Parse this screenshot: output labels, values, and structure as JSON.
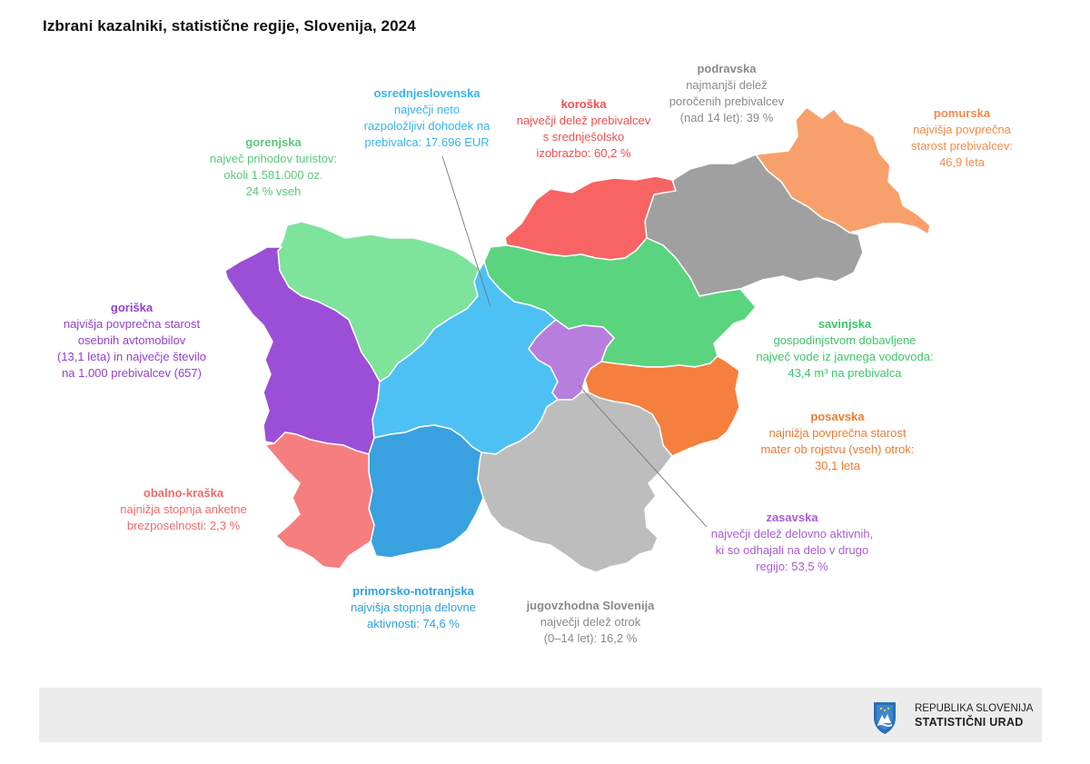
{
  "title": "Izbrani kazalniki, statistične regije, Slovenija, 2024",
  "regions": {
    "gorenjska": {
      "name": "gorenjska",
      "desc": "največ prihodov turistov:\nokoli 1.581.000 oz.\n24 % vseh",
      "color": "#7ee49c"
    },
    "osrednjeslovenska": {
      "name": "osrednjeslovenska",
      "desc": "največji neto\nrazpoložljivi dohodek na\nprebivalca: 17.696 EUR",
      "color": "#4dc1f4"
    },
    "koroska": {
      "name": "koroška",
      "desc": "največji delež prebivalcev\ns srednješolsko\nizobrazbo: 60,2 %",
      "color": "#f86464"
    },
    "podravska": {
      "name": "podravska",
      "desc": "najmanjši delež\nporočenih prebivalcev\n(nad 14 let): 39 %",
      "color": "#a0a0a0"
    },
    "pomurska": {
      "name": "pomurska",
      "desc": "najvišja povprečna\nstarost prebivalcev:\n46,9 leta",
      "color": "#f8a06c"
    },
    "goriska": {
      "name": "goriška",
      "desc": "najvišja povprečna starost\nosebnih avtomobilov\n(13,1 leta) in največje število\nna 1.000 prebivalcev (657)",
      "color": "#9b4fd6"
    },
    "savinjska": {
      "name": "savinjska",
      "desc": "gospodinjstvom dobavljene\nnajveč vode iz javnega vodovoda:\n43,4 m³ na prebivalca",
      "color": "#5ad47e"
    },
    "posavska": {
      "name": "posavska",
      "desc": "najnižja povprečna starost\nmater ob rojstvu (vseh) otrok:\n30,1 leta",
      "color": "#f57f3c"
    },
    "obalno_kraska": {
      "name": "obalno-kraška",
      "desc": "najnižja stopnja anketne\nbrezposelnosti: 2,3 %",
      "color": "#f77e7e"
    },
    "zasavska": {
      "name": "zasavska",
      "desc": "največji delež delovno aktivnih,\nki so odhajali na delo v drugo\nregijo: 53,5 %",
      "color": "#b87ede"
    },
    "primorsko_notranjska": {
      "name": "primorsko-notranjska",
      "desc": "najvišja stopnja delovne\naktivnosti: 74,6 %",
      "color": "#3aa1e0"
    },
    "jugovzhodna": {
      "name": "jugovzhodna Slovenija",
      "desc": "največji delež otrok\n(0–14 let): 16,2 %",
      "color": "#bdbdbd"
    }
  },
  "text_colors": {
    "gorenjska": "#58c97a",
    "osrednjeslovenska": "#36b4ee",
    "koroska": "#ef4f4f",
    "podravska": "#8a8a8a",
    "pomurska": "#f38a4c",
    "goriska": "#9440d0",
    "savinjska": "#3fc46a",
    "posavska": "#f07a32",
    "obalno_kraska": "#f06a6a",
    "zasavska": "#a85cd8",
    "primorsko_notranjska": "#2f9fe0",
    "jugovzhodna": "#8a8a8a"
  },
  "footer": {
    "line1": "REPUBLIKA SLOVENIJA",
    "line2": "STATISTIČNI URAD",
    "logo_icon": "coat-of-arms-shield-icon"
  }
}
